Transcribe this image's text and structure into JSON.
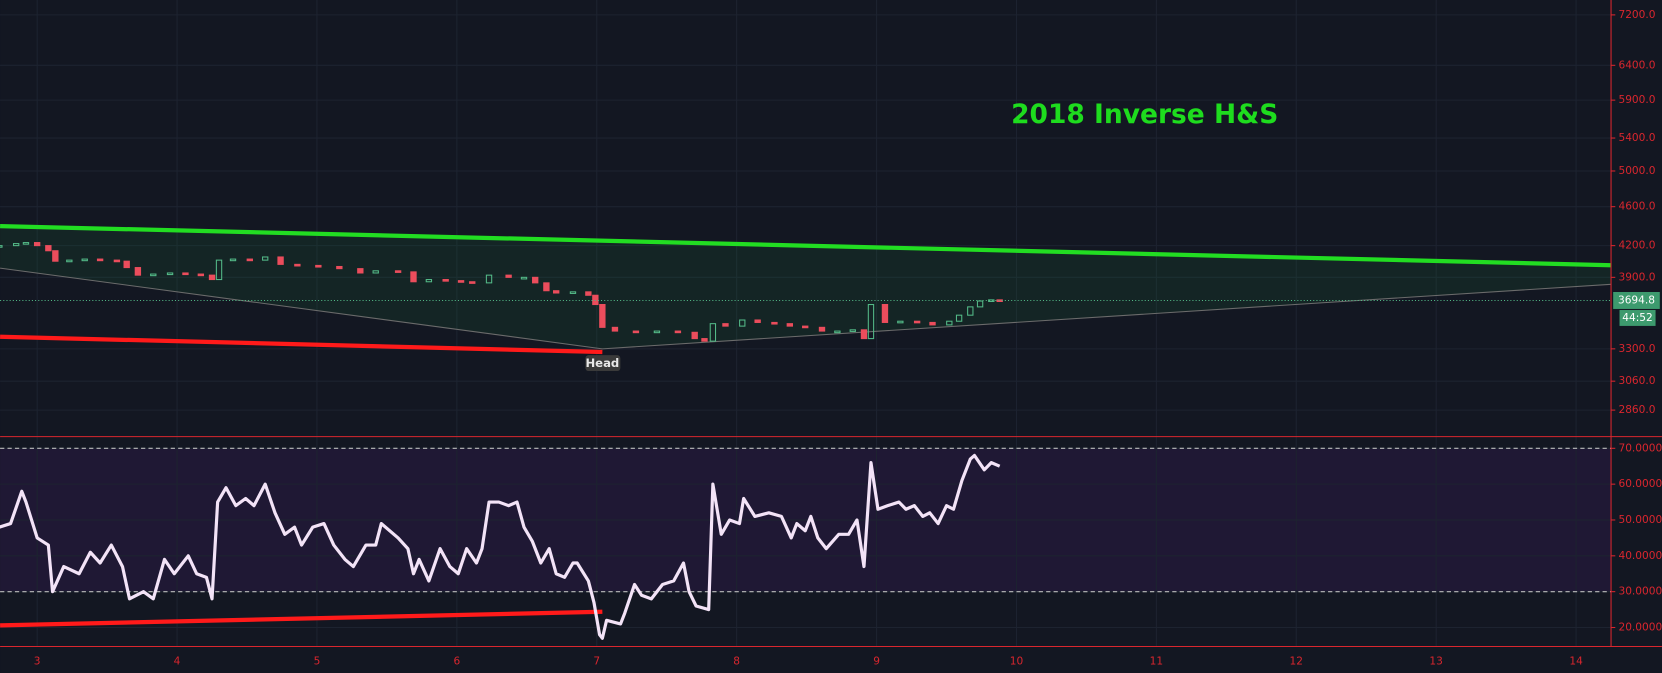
{
  "chart_data": [
    {
      "type": "candlestick",
      "title": "2018 Inverse H&S",
      "annotation": "Head",
      "x": [
        2.73,
        2.85,
        2.92,
        3.0,
        3.08,
        3.13,
        3.23,
        3.34,
        3.45,
        3.57,
        3.64,
        3.72,
        3.83,
        3.95,
        4.06,
        4.17,
        4.25,
        4.3,
        4.4,
        4.52,
        4.63,
        4.74,
        4.86,
        5.01,
        5.16,
        5.31,
        5.42,
        5.58,
        5.69,
        5.8,
        5.92,
        6.03,
        6.11,
        6.23,
        6.37,
        6.48,
        6.56,
        6.64,
        6.71,
        6.83,
        6.94,
        6.99,
        7.04,
        7.13,
        7.28,
        7.43,
        7.58,
        7.7,
        7.77,
        7.83,
        7.92,
        8.04,
        8.15,
        8.27,
        8.38,
        8.49,
        8.61,
        8.72,
        8.83,
        8.91,
        8.96,
        9.06,
        9.17,
        9.29,
        9.4,
        9.52,
        9.59,
        9.67,
        9.74,
        9.82,
        9.88
      ],
      "close": [
        4200,
        4220,
        4230,
        4200,
        4150,
        4050,
        4060,
        4070,
        4060,
        4050,
        3990,
        3920,
        3930,
        3940,
        3930,
        3920,
        3880,
        4060,
        4070,
        4060,
        4090,
        4020,
        4010,
        4000,
        3980,
        3940,
        3960,
        3950,
        3860,
        3880,
        3870,
        3860,
        3850,
        3920,
        3900,
        3900,
        3850,
        3780,
        3760,
        3770,
        3740,
        3660,
        3470,
        3440,
        3430,
        3440,
        3430,
        3380,
        3360,
        3500,
        3480,
        3530,
        3510,
        3500,
        3480,
        3470,
        3440,
        3440,
        3450,
        3380,
        3660,
        3510,
        3520,
        3510,
        3490,
        3520,
        3570,
        3640,
        3690,
        3700,
        3694.8
      ],
      "up_color": "#53b987",
      "down_color": "#eb4d5c",
      "log_scale": true,
      "ylim": [
        2688,
        7455
      ],
      "yticks": [
        {
          "value": 2860,
          "label": "2860.0"
        },
        {
          "value": 3060,
          "label": "3060.0"
        },
        {
          "value": 3300,
          "label": "3300.0"
        },
        {
          "value": 3900,
          "label": "3900.0"
        },
        {
          "value": 4200,
          "label": "4200.0"
        },
        {
          "value": 4600,
          "label": "4600.0"
        },
        {
          "value": 5000,
          "label": "5000.0"
        },
        {
          "value": 5400,
          "label": "5400.0"
        },
        {
          "value": 5900,
          "label": "5900.0"
        },
        {
          "value": 6400,
          "label": "6400.0"
        },
        {
          "value": 7200,
          "label": "7200.0"
        }
      ],
      "xlim": [
        2.735,
        14.25
      ],
      "last_price": 3694.8,
      "countdown": "44:52",
      "trendlines": [
        {
          "color": "#22dd22",
          "x": [
            2.735,
            14.25
          ],
          "y": [
            4396,
            4012
          ]
        },
        {
          "color": "#ff1a1a",
          "x": [
            2.735,
            7.04
          ],
          "y": [
            3395,
            3276
          ]
        },
        {
          "color": "#6b6b6b",
          "x": [
            2.735,
            7.04,
            14.25
          ],
          "y": [
            3985,
            3300,
            3837
          ]
        }
      ]
    },
    {
      "type": "line",
      "x": [
        2.73,
        2.81,
        2.89,
        2.92,
        3.0,
        3.08,
        3.11,
        3.19,
        3.3,
        3.38,
        3.45,
        3.53,
        3.61,
        3.66,
        3.76,
        3.83,
        3.91,
        3.98,
        4.08,
        4.14,
        4.21,
        4.25,
        4.29,
        4.35,
        4.42,
        4.49,
        4.55,
        4.63,
        4.7,
        4.77,
        4.84,
        4.89,
        4.97,
        5.05,
        5.12,
        5.2,
        5.26,
        5.35,
        5.42,
        5.46,
        5.58,
        5.65,
        5.69,
        5.73,
        5.8,
        5.88,
        5.95,
        6.01,
        6.07,
        6.14,
        6.18,
        6.23,
        6.3,
        6.37,
        6.43,
        6.48,
        6.54,
        6.6,
        6.66,
        6.71,
        6.77,
        6.83,
        6.86,
        6.94,
        6.98,
        7.02,
        7.04,
        7.07,
        7.17,
        7.2,
        7.27,
        7.32,
        7.39,
        7.47,
        7.55,
        7.62,
        7.66,
        7.71,
        7.8,
        7.83,
        7.89,
        7.95,
        8.02,
        8.05,
        8.13,
        8.23,
        8.32,
        8.39,
        8.43,
        8.49,
        8.53,
        8.58,
        8.64,
        8.73,
        8.8,
        8.86,
        8.91,
        8.96,
        9.01,
        9.08,
        9.16,
        9.21,
        9.27,
        9.33,
        9.38,
        9.44,
        9.5,
        9.55,
        9.61,
        9.67,
        9.7,
        9.77,
        9.82,
        9.88
      ],
      "values": [
        48,
        49,
        58,
        55,
        45,
        43,
        30,
        37,
        35,
        41,
        38,
        43,
        37,
        28,
        30,
        28,
        39,
        35,
        40,
        35,
        34,
        28,
        55,
        59,
        54,
        56,
        54,
        60,
        52,
        46,
        48,
        43,
        48,
        49,
        43,
        39,
        37,
        43,
        43,
        49,
        45,
        42,
        35,
        39,
        33,
        42,
        37,
        35,
        42,
        38,
        42,
        55,
        55,
        54,
        55,
        48,
        44,
        38,
        42,
        35,
        34,
        38,
        38,
        33,
        27,
        18,
        17,
        22,
        21,
        24,
        32,
        29,
        28,
        32,
        33,
        38,
        30,
        26,
        25,
        60,
        46,
        50,
        49,
        56,
        51,
        52,
        51,
        45,
        49,
        47,
        51,
        45,
        42,
        46,
        46,
        50,
        37,
        66,
        53,
        54,
        55,
        53,
        54,
        51,
        52,
        49,
        54,
        53,
        61,
        67,
        68,
        64,
        66,
        65
      ],
      "color": "#f3e3f7",
      "ylim": [
        14.7,
        73.25
      ],
      "yticks": [
        {
          "value": 20,
          "label": "20.0000"
        },
        {
          "value": 30,
          "label": "30.0000"
        },
        {
          "value": 40,
          "label": "40.0000"
        },
        {
          "value": 50,
          "label": "50.0000"
        },
        {
          "value": 60,
          "label": "60.0000"
        },
        {
          "value": 70,
          "label": "70.0000"
        }
      ],
      "band": [
        30,
        70
      ],
      "xlim": [
        2.735,
        14.25
      ],
      "xticks": [
        3,
        4,
        5,
        6,
        7,
        8,
        9,
        10,
        11,
        12,
        13,
        14
      ],
      "trendlines": [
        {
          "color": "#ff1a1a",
          "x": [
            2.735,
            7.04
          ],
          "y": [
            20.6,
            24.4
          ]
        }
      ]
    }
  ]
}
